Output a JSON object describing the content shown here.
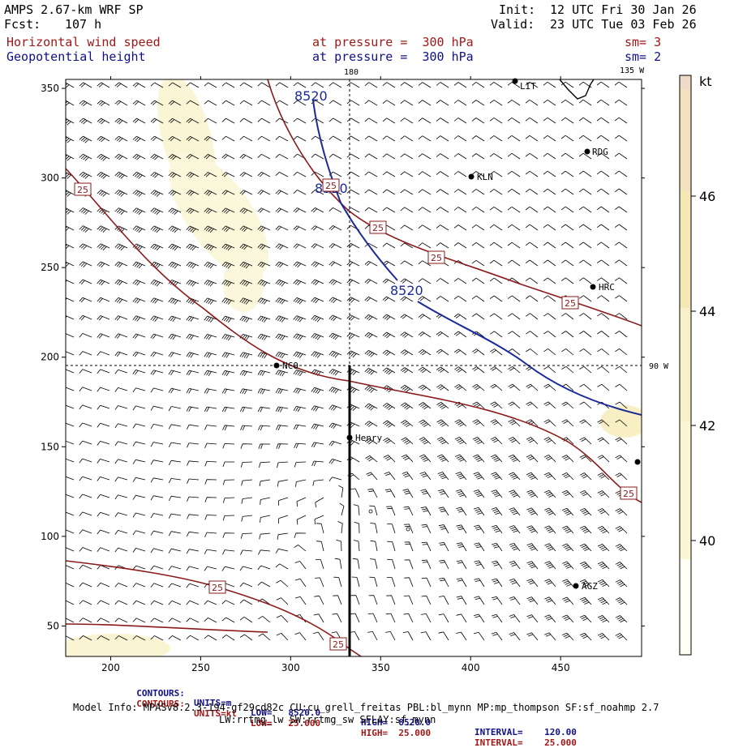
{
  "header": {
    "model": "AMPS 2.67-km WRF SP",
    "forecast_label": "Fcst:",
    "forecast_value": "107 h",
    "init_label": "Init:",
    "init_value": "12 UTC Fri 30 Jan 26",
    "valid_label": "Valid:",
    "valid_value": "23 UTC Tue 03 Feb 26",
    "field1_name": "Horizontal wind speed",
    "field1_level": "at pressure =  300 hPa",
    "field1_sm": "sm= 3",
    "field2_name": "Geopotential height",
    "field2_level": "at pressure =  300 hPa",
    "field2_sm": "sm= 2"
  },
  "map": {
    "x_ticks": [
      "200",
      "250",
      "300",
      "350",
      "400",
      "450"
    ],
    "y_ticks": [
      "350",
      "300",
      "250",
      "200",
      "150",
      "100",
      "50"
    ],
    "meridian_180": "180",
    "meridian_135w": "135 W",
    "meridian_90w": "90 W",
    "height_labels": [
      "8520",
      "8520",
      "8520"
    ],
    "speed_labels": [
      "25",
      "25",
      "25",
      "25",
      "25",
      "25",
      "25"
    ],
    "stations": [
      {
        "name": "RDG"
      },
      {
        "name": "KLN"
      },
      {
        "name": "HRC"
      },
      {
        "name": "NCO"
      },
      {
        "name": "Henry"
      },
      {
        "name": "AGZ"
      },
      {
        "name": "LIT"
      }
    ],
    "colors": {
      "shade_light": "#fbf7d6",
      "shade_mid": "#f6efc0",
      "height_contour": "#1a2a9a",
      "speed_contour": "#8b1a1a"
    }
  },
  "colorbar": {
    "unit": "kt",
    "ticks": [
      "46",
      "44",
      "42",
      "40"
    ],
    "colors": [
      "#fffff4",
      "#fbf7d6",
      "#f8f1c8",
      "#f4e9b6",
      "#f2e2c0",
      "#efdcc8",
      "#f5eee2"
    ]
  },
  "footer": {
    "row1": {
      "label": "CONTOURS:",
      "units": "UNITS=m",
      "low": "LOW=   8520.0",
      "high": "HIGH=  8520.0",
      "interval": "INTERVAL=    120.00"
    },
    "row2": {
      "label": "CONTOURS:",
      "units": "UNITS=kt",
      "low": "LOW=   25.000",
      "high": "HIGH=  25.000",
      "interval": "INTERVAL=    25.000"
    },
    "model_info": "Model Info: MPASv8.2.3-194-gf29cd82c CU:cu_grell_freitas PBL:bl_mynn MP:mp_thompson SF:sf_noahmp 2.7",
    "model_info2": "LW:rrtmg_lw SW:rrtmg_sw SFLAY:sf_mynn"
  }
}
